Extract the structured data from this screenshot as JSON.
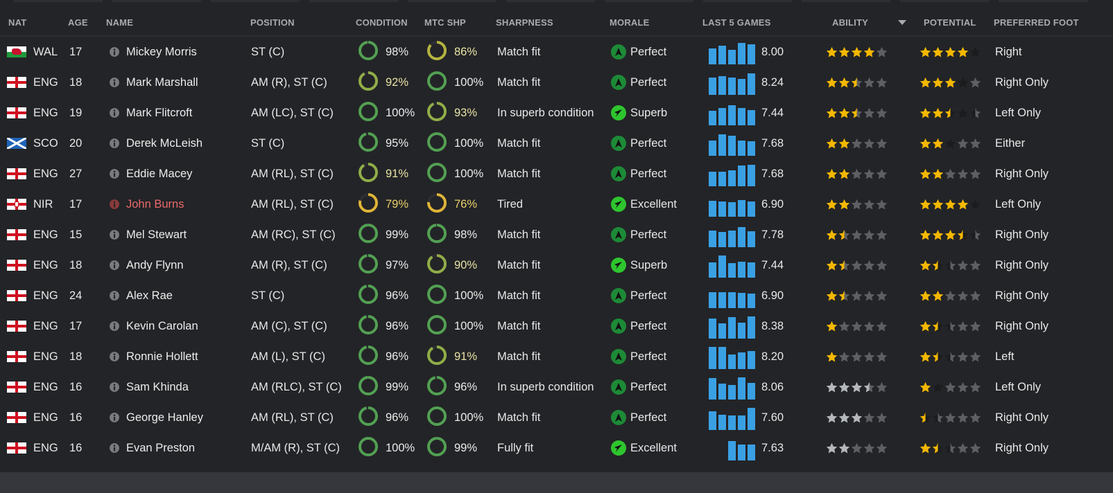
{
  "columns": {
    "nat": "NAT",
    "age": "AGE",
    "name": "NAME",
    "position": "POSITION",
    "condition": "CONDITION",
    "mtc_shp": "MTC SHP",
    "sharpness": "SHARPNESS",
    "morale": "MORALE",
    "last5": "LAST 5 GAMES",
    "ability": "ABILITY",
    "potential": "POTENTIAL",
    "foot": "PREFERRED FOOT"
  },
  "sort": {
    "column": "ability",
    "direction": "descending",
    "icon": "sort-down-icon"
  },
  "colors": {
    "bar": "#3aa0e4",
    "star_gold": "#f5b800",
    "star_silver": "#b4b8bc",
    "star_empty": "#5e5f62",
    "star_range": "#1b1c1e",
    "morale_perfect": "#1d8a37",
    "morale_superb": "#2ec52e",
    "injured_name": "#e86a6a"
  },
  "players": [
    {
      "nat": "WAL",
      "age": "17",
      "name": "Mickey Morris",
      "position": "ST (C)",
      "condition": 98,
      "condition_text": "98%",
      "mtc": 86,
      "mtc_text": "86%",
      "sharpness": "Match fit",
      "morale": "Perfect",
      "last5": [
        7.1,
        8.4,
        6.5,
        9.7,
        9.0
      ],
      "avg": "8.00",
      "ability": 4,
      "ability_color": "gold",
      "potential_min": 4,
      "potential_max": 5,
      "foot": "Right"
    },
    {
      "nat": "ENG",
      "age": "18",
      "name": "Mark Marshall",
      "position": "AM (R), ST (C)",
      "condition": 92,
      "condition_text": "92%",
      "mtc": 100,
      "mtc_text": "100%",
      "sharpness": "Match fit",
      "morale": "Perfect",
      "last5": [
        7.9,
        8.5,
        7.9,
        7.3,
        9.6
      ],
      "avg": "8.24",
      "ability": 2.5,
      "ability_color": "gold",
      "potential_min": 3,
      "potential_max": 4,
      "foot": "Right Only"
    },
    {
      "nat": "ENG",
      "age": "19",
      "name": "Mark Flitcroft",
      "position": "AM (LC), ST (C)",
      "condition": 100,
      "condition_text": "100%",
      "mtc": 93,
      "mtc_text": "93%",
      "sharpness": "In superb condition",
      "morale": "Superb",
      "last5": [
        6.5,
        7.7,
        9.0,
        7.7,
        6.8
      ],
      "avg": "7.44",
      "ability": 2.5,
      "ability_color": "gold",
      "potential_min": 2.5,
      "potential_max": 4.5,
      "foot": "Left Only"
    },
    {
      "nat": "SCO",
      "age": "20",
      "name": "Derek McLeish",
      "position": "ST (C)",
      "condition": 95,
      "condition_text": "95%",
      "mtc": 100,
      "mtc_text": "100%",
      "sharpness": "Match fit",
      "morale": "Perfect",
      "last5": [
        6.8,
        9.7,
        9.0,
        6.8,
        6.5
      ],
      "avg": "7.68",
      "ability": 2,
      "ability_color": "gold",
      "potential_min": 2,
      "potential_max": 3,
      "foot": "Either"
    },
    {
      "nat": "ENG",
      "age": "27",
      "name": "Eddie Macey",
      "position": "AM (RL), ST (C)",
      "condition": 91,
      "condition_text": "91%",
      "mtc": 100,
      "mtc_text": "100%",
      "sharpness": "Match fit",
      "morale": "Perfect",
      "last5": [
        6.5,
        6.5,
        7.1,
        9.4,
        9.7
      ],
      "avg": "7.68",
      "ability": 2,
      "ability_color": "gold",
      "potential_min": 2,
      "potential_max": 2,
      "foot": "Right Only"
    },
    {
      "nat": "NIR",
      "age": "17",
      "name": "John Burns",
      "position": "AM (RL), ST (C)",
      "condition": 79,
      "condition_text": "79%",
      "mtc": 76,
      "mtc_text": "76%",
      "sharpness": "Tired",
      "morale": "Excellent",
      "last5": [
        7.1,
        6.8,
        6.5,
        7.4,
        6.8
      ],
      "avg": "6.90",
      "ability": 2,
      "ability_color": "gold",
      "potential_min": 4,
      "potential_max": 5,
      "foot": "Left Only",
      "flagged": true
    },
    {
      "nat": "ENG",
      "age": "15",
      "name": "Mel Stewart",
      "position": "AM (RC), ST (C)",
      "condition": 99,
      "condition_text": "99%",
      "mtc": 98,
      "mtc_text": "98%",
      "sharpness": "Match fit",
      "morale": "Perfect",
      "last5": [
        7.6,
        7.0,
        7.6,
        9.0,
        7.3
      ],
      "avg": "7.78",
      "ability": 1.5,
      "ability_color": "gold",
      "potential_min": 3.5,
      "potential_max": 4.5,
      "foot": "Right Only"
    },
    {
      "nat": "ENG",
      "age": "18",
      "name": "Andy Flynn",
      "position": "AM (R), ST (C)",
      "condition": 97,
      "condition_text": "97%",
      "mtc": 90,
      "mtc_text": "90%",
      "sharpness": "Match fit",
      "morale": "Superb",
      "last5": [
        6.8,
        10,
        6.5,
        7.1,
        6.8
      ],
      "avg": "7.44",
      "ability": 1.5,
      "ability_color": "gold",
      "potential_min": 1.5,
      "potential_max": 2.5,
      "foot": "Right Only"
    },
    {
      "nat": "ENG",
      "age": "24",
      "name": "Alex Rae",
      "position": "ST (C)",
      "condition": 96,
      "condition_text": "96%",
      "mtc": 100,
      "mtc_text": "100%",
      "sharpness": "Match fit",
      "morale": "Perfect",
      "last5": [
        7.1,
        7.1,
        7.1,
        6.8,
        6.5
      ],
      "avg": "6.90",
      "ability": 1.5,
      "ability_color": "gold",
      "potential_min": 2,
      "potential_max": 2,
      "foot": "Right Only"
    },
    {
      "nat": "ENG",
      "age": "17",
      "name": "Kevin Carolan",
      "position": "AM (C), ST (C)",
      "condition": 96,
      "condition_text": "96%",
      "mtc": 100,
      "mtc_text": "100%",
      "sharpness": "Match fit",
      "morale": "Perfect",
      "last5": [
        9.0,
        6.8,
        9.8,
        7.1,
        10
      ],
      "avg": "8.38",
      "ability": 1,
      "ability_color": "gold",
      "potential_min": 1.5,
      "potential_max": 2.5,
      "foot": "Right Only"
    },
    {
      "nat": "ENG",
      "age": "18",
      "name": "Ronnie Hollett",
      "position": "AM (L), ST (C)",
      "condition": 96,
      "condition_text": "96%",
      "mtc": 91,
      "mtc_text": "91%",
      "sharpness": "Match fit",
      "morale": "Perfect",
      "last5": [
        10,
        10,
        6.5,
        7.4,
        8.1
      ],
      "avg": "8.20",
      "ability": 1,
      "ability_color": "gold",
      "potential_min": 1.5,
      "potential_max": 2.5,
      "foot": "Left"
    },
    {
      "nat": "ENG",
      "age": "16",
      "name": "Sam Khinda",
      "position": "AM (RLC), ST (C)",
      "condition": 99,
      "condition_text": "99%",
      "mtc": 96,
      "mtc_text": "96%",
      "sharpness": "In superb condition",
      "morale": "Perfect",
      "last5": [
        9.7,
        7.1,
        6.5,
        10,
        7.4
      ],
      "avg": "8.06",
      "ability": 3.5,
      "ability_color": "silver",
      "potential_min": 1,
      "potential_max": 2,
      "foot": "Left Only"
    },
    {
      "nat": "ENG",
      "age": "16",
      "name": "George Hanley",
      "position": "AM (RL), ST (C)",
      "condition": 96,
      "condition_text": "96%",
      "mtc": 100,
      "mtc_text": "100%",
      "sharpness": "Match fit",
      "morale": "Perfect",
      "last5": [
        8.4,
        6.8,
        6.5,
        6.5,
        10
      ],
      "avg": "7.60",
      "ability": 3,
      "ability_color": "silver",
      "potential_min": 0.5,
      "potential_max": 1.5,
      "foot": "Right Only"
    },
    {
      "nat": "ENG",
      "age": "16",
      "name": "Evan Preston",
      "position": "M/AM (R), ST (C)",
      "condition": 100,
      "condition_text": "100%",
      "mtc": 99,
      "mtc_text": "99%",
      "sharpness": "Fully fit",
      "morale": "Excellent",
      "last5": [
        null,
        null,
        8.6,
        7.2,
        7.1
      ],
      "avg": "7.63",
      "ability": 2,
      "ability_color": "silver",
      "potential_min": 1.5,
      "potential_max": 2.5,
      "foot": "Right Only"
    }
  ]
}
